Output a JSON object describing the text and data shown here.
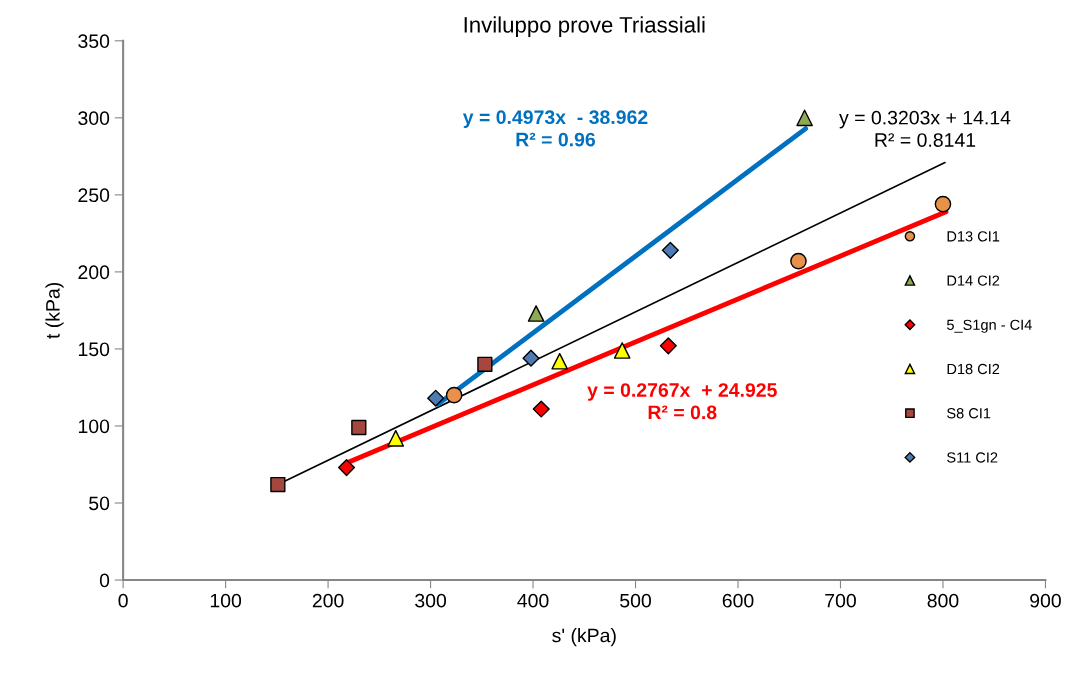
{
  "chart_data": {
    "type": "scatter",
    "title": "Inviluppo prove Triassiali",
    "xlabel": "s' (kPa)",
    "ylabel": "t (kPa)",
    "xlim": [
      0,
      900
    ],
    "xticks": [
      0,
      100,
      200,
      300,
      400,
      500,
      600,
      700,
      800,
      900
    ],
    "ylim": [
      0,
      350
    ],
    "yticks": [
      0,
      50,
      100,
      150,
      200,
      250,
      300,
      350
    ],
    "grid": false,
    "legend": "right",
    "series": [
      {
        "name": "D13 CI1",
        "color": "#e8914a",
        "marker": "circle",
        "x": [
          323,
          659,
          800
        ],
        "values": [
          120,
          207,
          244
        ]
      },
      {
        "name": "D14 CI2",
        "color": "#8faa55",
        "marker": "triangle",
        "x": [
          403,
          665
        ],
        "values": [
          173,
          300
        ]
      },
      {
        "name": "5_S1gn - CI4",
        "color": "#ff0000",
        "marker": "diamond",
        "x": [
          218,
          408,
          532
        ],
        "values": [
          73,
          111,
          152
        ]
      },
      {
        "name": "D18 CI2",
        "color": "#ffff00",
        "marker": "triangle",
        "x": [
          266,
          426,
          487
        ],
        "values": [
          92,
          142,
          149
        ]
      },
      {
        "name": "S8 CI1",
        "color": "#a5473f",
        "marker": "square",
        "x": [
          151,
          230,
          353
        ],
        "values": [
          62,
          99,
          140
        ]
      },
      {
        "name": "S11 CI2",
        "color": "#4f7bb5",
        "marker": "diamond",
        "x": [
          305,
          398,
          534
        ],
        "values": [
          118,
          144,
          214
        ]
      },
      {
        "name": "y = 0.3203x + 14.14\nR² = 0.8141",
        "type": "line",
        "color": "#000000",
        "marker": "none",
        "x": [
          151,
          802
        ],
        "values": [
          62,
          271
        ]
      },
      {
        "name": "y = 0.4973x  - 38.962\nR² = 0.96",
        "type": "line",
        "color": "#0070c0",
        "marker": "none",
        "x": [
          307,
          666
        ],
        "values": [
          114,
          293
        ]
      },
      {
        "name": "y = 0.2767x  + 24.925\nR² = 0.8",
        "type": "line",
        "color": "#ff0000",
        "marker": "none",
        "x": [
          218,
          803
        ],
        "values": [
          76,
          239
        ]
      }
    ]
  }
}
